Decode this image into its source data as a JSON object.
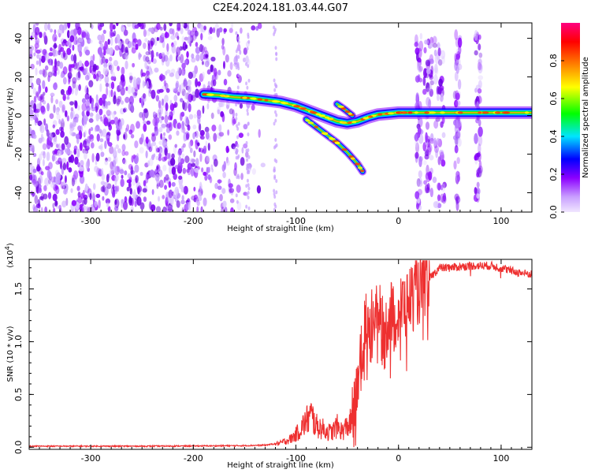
{
  "figure": {
    "title": "C2E4.2024.181.03.44.G07"
  },
  "chart_data": [
    {
      "type": "heatmap",
      "xlabel": "Height of straight line (km)",
      "ylabel": "Frequency (Hz)",
      "xlim": [
        -360,
        130
      ],
      "ylim": [
        -50,
        48
      ],
      "xticks": [
        -300,
        -200,
        -100,
        0,
        100
      ],
      "yticks": [
        -40,
        -20,
        0,
        20,
        40
      ],
      "colorbar": {
        "label": "Normalized spectral amplitude",
        "ticks": [
          "0.0",
          "0.2",
          "0.4",
          "0.6",
          "0.8"
        ],
        "range": [
          0,
          1
        ],
        "colormap": [
          "#f0e6ff",
          "#8c00ff",
          "#0000ff",
          "#00e5ff",
          "#00ff00",
          "#ffff00",
          "#ff8000",
          "#ff0000",
          "#ff0080"
        ]
      },
      "noise_region": {
        "x": [
          -360,
          -150
        ],
        "freq": [
          -50,
          48
        ]
      },
      "ridges": [
        {
          "points": [
            [
              -190,
              11
            ],
            [
              -175,
              10.5
            ],
            [
              -160,
              9.5
            ],
            [
              -145,
              9
            ],
            [
              -130,
              8
            ],
            [
              -115,
              7
            ],
            [
              -100,
              5
            ],
            [
              -90,
              3
            ],
            [
              -80,
              1
            ],
            [
              -70,
              -1
            ],
            [
              -60,
              -3
            ],
            [
              -50,
              -4
            ],
            [
              -40,
              -3
            ],
            [
              -30,
              -1
            ],
            [
              -20,
              0.5
            ],
            [
              -10,
              1
            ],
            [
              0,
              1.5
            ],
            [
              10,
              1.5
            ],
            [
              20,
              1.5
            ],
            [
              40,
              1.5
            ],
            [
              60,
              1.5
            ],
            [
              80,
              1.5
            ],
            [
              100,
              1.5
            ],
            [
              130,
              1.5
            ]
          ]
        },
        {
          "points": [
            [
              -90,
              -2
            ],
            [
              -80,
              -6
            ],
            [
              -70,
              -10
            ],
            [
              -60,
              -14
            ],
            [
              -50,
              -19
            ],
            [
              -40,
              -25
            ],
            [
              -35,
              -29
            ]
          ]
        },
        {
          "points": [
            [
              -60,
              6
            ],
            [
              -52,
              3
            ],
            [
              -45,
              0
            ]
          ]
        }
      ],
      "vertical_bands": [
        [
          17,
          22
        ],
        [
          25,
          33
        ],
        [
          35,
          45
        ],
        [
          55,
          60
        ],
        [
          75,
          80
        ]
      ]
    },
    {
      "type": "line",
      "xlabel": "Height of straight line (km)",
      "ylabel": "SNR (10 * v/v)",
      "scale_note": "(x10",
      "scale_exp": "4",
      "scale_close": ")",
      "xlim": [
        -360,
        130
      ],
      "ylim": [
        -0.02,
        1.78
      ],
      "xticks": [
        -300,
        -200,
        -100,
        0,
        100
      ],
      "yticks": [
        "0.0",
        "0.5",
        "1.0",
        "1.5"
      ],
      "line_color": "#ee3030",
      "series": [
        {
          "x": [
            -360,
            -300,
            -250,
            -200,
            -150,
            -130,
            -115,
            -105,
            -100,
            -95,
            -90,
            -85,
            -80,
            -75,
            -70,
            -65,
            -60,
            -55,
            -50,
            -45,
            -42,
            -40,
            -38,
            -35,
            -32,
            -30,
            -28,
            -25,
            -22,
            -20,
            -18,
            -15,
            -12,
            -10,
            -7,
            -5,
            -2,
            0,
            5,
            10,
            15,
            20,
            25,
            30,
            35,
            40,
            50,
            60,
            70,
            80,
            90,
            100,
            110,
            120,
            130
          ],
          "values": [
            0.01,
            0.01,
            0.01,
            0.012,
            0.015,
            0.02,
            0.04,
            0.08,
            0.12,
            0.18,
            0.25,
            0.3,
            0.2,
            0.18,
            0.15,
            0.14,
            0.2,
            0.15,
            0.2,
            0.25,
            0.35,
            0.5,
            0.75,
            0.95,
            1.2,
            1.3,
            1.1,
            1.2,
            1.35,
            1.0,
            1.25,
            1.05,
            1.1,
            1.25,
            1.3,
            1.2,
            1.25,
            1.3,
            1.35,
            1.4,
            1.45,
            1.5,
            1.55,
            1.6,
            1.65,
            1.7,
            1.7,
            1.71,
            1.72,
            1.72,
            1.72,
            1.7,
            1.67,
            1.65,
            1.64
          ]
        }
      ]
    }
  ]
}
